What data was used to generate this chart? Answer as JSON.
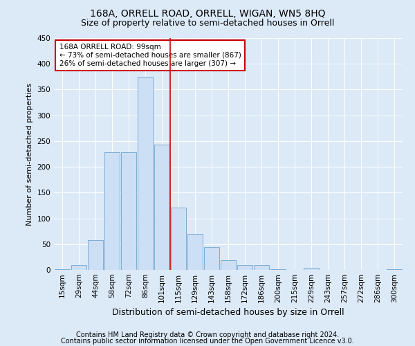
{
  "title": "168A, ORRELL ROAD, ORRELL, WIGAN, WN5 8HQ",
  "subtitle": "Size of property relative to semi-detached houses in Orrell",
  "xlabel": "Distribution of semi-detached houses by size in Orrell",
  "ylabel": "Number of semi-detached properties",
  "categories": [
    "15sqm",
    "29sqm",
    "44sqm",
    "58sqm",
    "72sqm",
    "86sqm",
    "101sqm",
    "115sqm",
    "129sqm",
    "143sqm",
    "158sqm",
    "172sqm",
    "186sqm",
    "200sqm",
    "215sqm",
    "229sqm",
    "243sqm",
    "257sqm",
    "272sqm",
    "286sqm",
    "300sqm"
  ],
  "values": [
    2,
    9,
    58,
    228,
    229,
    375,
    243,
    121,
    70,
    45,
    19,
    10,
    9,
    1,
    0,
    4,
    0,
    0,
    0,
    0,
    1
  ],
  "bar_color": "#ccdff5",
  "bar_edge_color": "#7dadd4",
  "property_label": "168A ORRELL ROAD: 99sqm",
  "pct_smaller": 73,
  "count_smaller": 867,
  "pct_larger": 26,
  "count_larger": 307,
  "vline_position": 6.5,
  "ylim": [
    0,
    450
  ],
  "yticks": [
    0,
    50,
    100,
    150,
    200,
    250,
    300,
    350,
    400,
    450
  ],
  "footer1": "Contains HM Land Registry data © Crown copyright and database right 2024.",
  "footer2": "Contains public sector information licensed under the Open Government Licence v3.0.",
  "background_color": "#dce9f7",
  "plot_bg_color": "#dce9f7",
  "annotation_box_color": "#ffffff",
  "annotation_box_edge": "#cc0000",
  "vline_color": "#cc0000",
  "title_fontsize": 10,
  "subtitle_fontsize": 9,
  "xlabel_fontsize": 9,
  "ylabel_fontsize": 8,
  "tick_fontsize": 7.5,
  "annotation_fontsize": 7.5,
  "footer_fontsize": 7
}
